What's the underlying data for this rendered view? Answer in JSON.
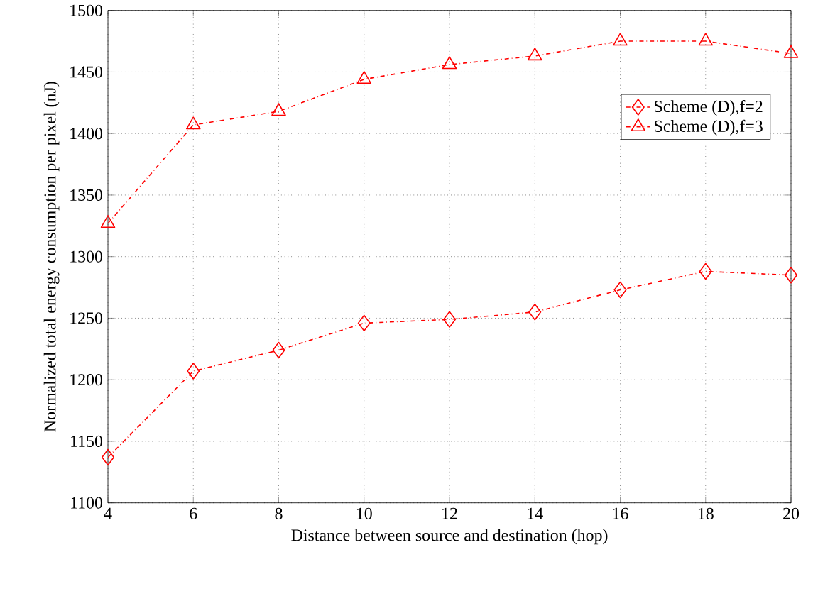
{
  "chart_data": {
    "type": "line",
    "xlabel": "Distance between source and destination (hop)",
    "ylabel": "Normalized total energy consumption per pixel (nJ)",
    "x": [
      4,
      6,
      8,
      10,
      12,
      14,
      16,
      18,
      20
    ],
    "series": [
      {
        "name": "Scheme (D),f=2",
        "color": "#ff0000",
        "marker": "diamond",
        "values": [
          1137,
          1207,
          1224,
          1246,
          1249,
          1255,
          1273,
          1288,
          1285
        ]
      },
      {
        "name": "Scheme (D),f=3",
        "color": "#ff0000",
        "marker": "triangle",
        "values": [
          1327,
          1407,
          1418,
          1444,
          1456,
          1463,
          1475,
          1475,
          1465
        ]
      }
    ],
    "xlim": [
      4,
      20
    ],
    "xticks": [
      4,
      6,
      8,
      10,
      12,
      14,
      16,
      18,
      20
    ],
    "ylim": [
      1100,
      1500
    ],
    "yticks": [
      1100,
      1150,
      1200,
      1250,
      1300,
      1350,
      1400,
      1450,
      1500
    ],
    "grid": true,
    "legend": "top right",
    "line_style": "dashed"
  }
}
